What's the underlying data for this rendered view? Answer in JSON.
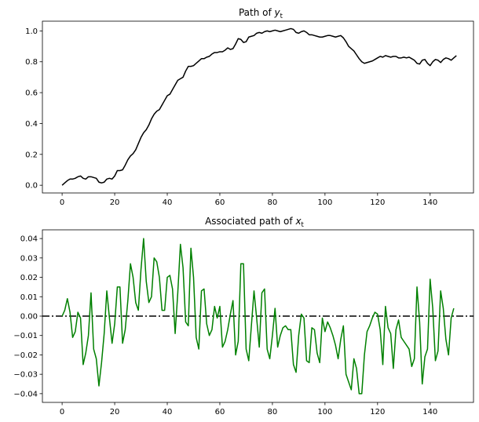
{
  "chart_data": [
    {
      "type": "line",
      "title_prefix": "Path of ",
      "title_var": "y",
      "title_sub": "t",
      "xlim": [
        -7.5,
        156.5
      ],
      "ylim": [
        -0.05,
        1.063
      ],
      "xticks": [
        0,
        20,
        40,
        60,
        80,
        100,
        120,
        140
      ],
      "yticks": [
        0.0,
        0.2,
        0.4,
        0.6,
        0.8,
        1.0
      ],
      "ytick_labels": [
        "0.0",
        "0.2",
        "0.4",
        "0.6",
        "0.8",
        "1.0"
      ],
      "grid": false,
      "series": [
        {
          "color": "#000000",
          "x_start": 0,
          "values": [
            0.0,
            0.015,
            0.03,
            0.04,
            0.04,
            0.045,
            0.055,
            0.06,
            0.045,
            0.04,
            0.055,
            0.055,
            0.05,
            0.045,
            0.02,
            0.015,
            0.02,
            0.04,
            0.045,
            0.04,
            0.06,
            0.095,
            0.095,
            0.1,
            0.13,
            0.165,
            0.19,
            0.205,
            0.23,
            0.27,
            0.31,
            0.34,
            0.36,
            0.39,
            0.43,
            0.46,
            0.48,
            0.49,
            0.52,
            0.55,
            0.58,
            0.59,
            0.62,
            0.65,
            0.68,
            0.69,
            0.7,
            0.74,
            0.77,
            0.77,
            0.775,
            0.79,
            0.805,
            0.82,
            0.82,
            0.83,
            0.835,
            0.85,
            0.86,
            0.86,
            0.865,
            0.865,
            0.875,
            0.89,
            0.88,
            0.885,
            0.915,
            0.95,
            0.945,
            0.925,
            0.93,
            0.96,
            0.965,
            0.97,
            0.985,
            0.99,
            0.985,
            0.995,
            1.0,
            0.995,
            1.0,
            1.005,
            1.0,
            0.995,
            1.0,
            1.005,
            1.01,
            1.015,
            1.01,
            0.99,
            0.985,
            0.995,
            1.0,
            0.99,
            0.975,
            0.975,
            0.97,
            0.965,
            0.96,
            0.96,
            0.965,
            0.97,
            0.97,
            0.965,
            0.96,
            0.965,
            0.97,
            0.955,
            0.93,
            0.9,
            0.885,
            0.87,
            0.845,
            0.82,
            0.8,
            0.79,
            0.795,
            0.8,
            0.805,
            0.815,
            0.825,
            0.835,
            0.83,
            0.84,
            0.835,
            0.83,
            0.835,
            0.835,
            0.825,
            0.825,
            0.83,
            0.825,
            0.83,
            0.82,
            0.81,
            0.79,
            0.785,
            0.81,
            0.815,
            0.79,
            0.775,
            0.8,
            0.815,
            0.81,
            0.795,
            0.815,
            0.825,
            0.82,
            0.81,
            0.825,
            0.84
          ]
        }
      ]
    },
    {
      "type": "line",
      "title_prefix": "Associated path of ",
      "title_var": "x",
      "title_sub": "t",
      "xlim": [
        -7.5,
        156.5
      ],
      "ylim": [
        -0.0445,
        0.0445
      ],
      "xticks": [
        0,
        20,
        40,
        60,
        80,
        100,
        120,
        140
      ],
      "yticks": [
        -0.04,
        -0.03,
        -0.02,
        -0.01,
        0.0,
        0.01,
        0.02,
        0.03,
        0.04
      ],
      "ytick_labels": [
        "−0.04",
        "−0.03",
        "−0.02",
        "−0.01",
        "0.00",
        "0.01",
        "0.02",
        "0.03",
        "0.04"
      ],
      "grid": false,
      "reference_line": {
        "y": 0.0,
        "color": "#000000",
        "style": "dash-dot"
      },
      "series": [
        {
          "color": "#008000",
          "x_start": 0,
          "values": [
            0.0,
            0.003,
            0.009,
            0.002,
            -0.011,
            -0.008,
            0.002,
            -0.001,
            -0.025,
            -0.019,
            -0.01,
            0.012,
            -0.017,
            -0.022,
            -0.036,
            -0.024,
            -0.009,
            0.013,
            -0.001,
            -0.014,
            -0.004,
            0.015,
            0.015,
            -0.014,
            -0.007,
            0.008,
            0.027,
            0.02,
            0.007,
            0.003,
            0.024,
            0.04,
            0.018,
            0.007,
            0.01,
            0.03,
            0.028,
            0.02,
            0.003,
            0.003,
            0.02,
            0.021,
            0.014,
            -0.009,
            0.012,
            0.037,
            0.025,
            -0.003,
            -0.005,
            0.035,
            0.02,
            -0.011,
            -0.017,
            0.013,
            0.014,
            -0.004,
            -0.01,
            -0.007,
            0.005,
            -0.001,
            0.005,
            -0.016,
            -0.013,
            -0.007,
            0.001,
            0.008,
            -0.02,
            -0.013,
            0.027,
            0.027,
            -0.017,
            -0.023,
            -0.005,
            0.013,
            -0.001,
            -0.016,
            0.012,
            0.014,
            -0.017,
            -0.022,
            -0.01,
            0.004,
            -0.016,
            -0.01,
            -0.006,
            -0.005,
            -0.007,
            -0.007,
            -0.025,
            -0.029,
            -0.01,
            0.001,
            -0.001,
            -0.023,
            -0.024,
            -0.006,
            -0.007,
            -0.019,
            -0.024,
            -0.001,
            -0.008,
            -0.003,
            -0.006,
            -0.01,
            -0.015,
            -0.022,
            -0.012,
            -0.005,
            -0.03,
            -0.034,
            -0.038,
            -0.022,
            -0.027,
            -0.04,
            -0.04,
            -0.02,
            -0.008,
            -0.005,
            -0.001,
            0.002,
            0.001,
            -0.007,
            -0.025,
            0.005,
            -0.006,
            -0.009,
            -0.027,
            -0.007,
            -0.002,
            -0.011,
            -0.013,
            -0.015,
            -0.017,
            -0.026,
            -0.022,
            0.015,
            -0.003,
            -0.035,
            -0.021,
            -0.017,
            0.019,
            0.004,
            -0.023,
            -0.018,
            0.013,
            0.004,
            -0.012,
            -0.02,
            -0.001,
            0.004
          ]
        }
      ]
    }
  ]
}
